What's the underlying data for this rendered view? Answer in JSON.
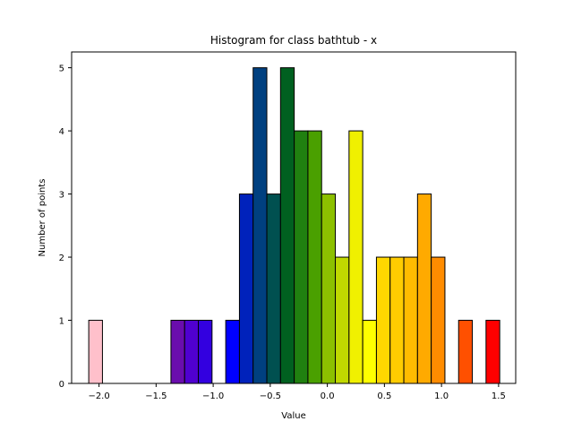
{
  "chart_data": {
    "type": "bar",
    "title": "Histogram for class bathtub - x",
    "xlabel": "Value",
    "ylabel": "Number of points",
    "xlim": [
      -2.24,
      1.65
    ],
    "ylim": [
      0,
      5.25
    ],
    "grid": false,
    "bin_width": 0.12,
    "x_ticks": [
      -2.0,
      -1.5,
      -1.0,
      -0.5,
      0.0,
      0.5,
      1.0,
      1.5
    ],
    "x_tick_labels": [
      "−2.0",
      "−1.5",
      "−1.0",
      "−0.5",
      "0.0",
      "0.5",
      "1.0",
      "1.5"
    ],
    "y_ticks": [
      0,
      1,
      2,
      3,
      4,
      5
    ],
    "y_tick_labels": [
      "0",
      "1",
      "2",
      "3",
      "4",
      "5"
    ],
    "bars": [
      {
        "x": -2.09,
        "value": 1,
        "color": "#ffc0cb"
      },
      {
        "x": -1.37,
        "value": 1,
        "color": "#6a0dad"
      },
      {
        "x": -1.25,
        "value": 1,
        "color": "#5000d0"
      },
      {
        "x": -1.13,
        "value": 1,
        "color": "#3300e0"
      },
      {
        "x": -0.89,
        "value": 1,
        "color": "#0000ff"
      },
      {
        "x": -0.77,
        "value": 3,
        "color": "#0022bb"
      },
      {
        "x": -0.65,
        "value": 5,
        "color": "#004080"
      },
      {
        "x": -0.53,
        "value": 3,
        "color": "#005050"
      },
      {
        "x": -0.41,
        "value": 5,
        "color": "#006020"
      },
      {
        "x": -0.29,
        "value": 4,
        "color": "#208010"
      },
      {
        "x": -0.17,
        "value": 4,
        "color": "#4aa000"
      },
      {
        "x": -0.05,
        "value": 3,
        "color": "#8cc000"
      },
      {
        "x": 0.07,
        "value": 2,
        "color": "#c0d800"
      },
      {
        "x": 0.19,
        "value": 4,
        "color": "#f0f000"
      },
      {
        "x": 0.31,
        "value": 1,
        "color": "#ffff00"
      },
      {
        "x": 0.43,
        "value": 2,
        "color": "#ffd700"
      },
      {
        "x": 0.55,
        "value": 2,
        "color": "#ffcc00"
      },
      {
        "x": 0.67,
        "value": 2,
        "color": "#ffbb00"
      },
      {
        "x": 0.79,
        "value": 3,
        "color": "#ffaa00"
      },
      {
        "x": 0.91,
        "value": 2,
        "color": "#ff8c00"
      },
      {
        "x": 1.15,
        "value": 1,
        "color": "#ff5000"
      },
      {
        "x": 1.39,
        "value": 1,
        "color": "#ff0000"
      }
    ]
  }
}
